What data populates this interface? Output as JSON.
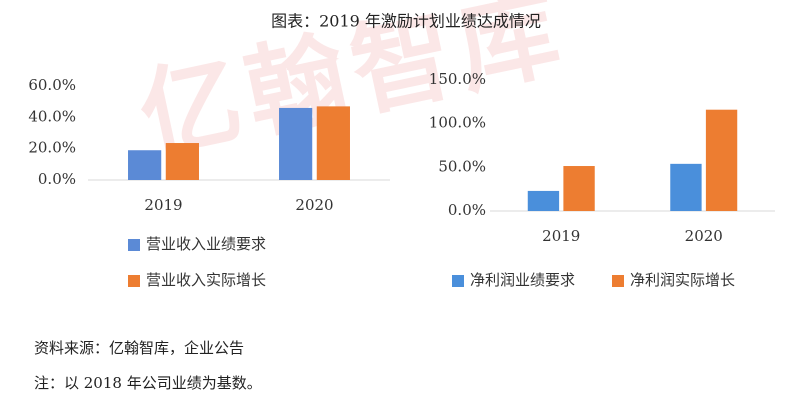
{
  "title": "图表：2019 年激励计划业绩达成情况",
  "watermark": "亿翰智库",
  "chart_data": [
    {
      "type": "bar",
      "categories": [
        "2019",
        "2020"
      ],
      "series": [
        {
          "name": "营业收入业绩要求",
          "color": "#5b8ad6",
          "values": [
            19,
            46
          ]
        },
        {
          "name": "营业收入实际增长",
          "color": "#ed7d31",
          "values": [
            23.6,
            47
          ]
        }
      ],
      "ylim": [
        0,
        60
      ],
      "yticks": [
        {
          "value": 0,
          "label": "0.0%"
        },
        {
          "value": 20,
          "label": "20.0%"
        },
        {
          "value": 40,
          "label": "40.0%"
        },
        {
          "value": 60,
          "label": "60.0%"
        }
      ],
      "legend": "bottom-vertical"
    },
    {
      "type": "bar",
      "categories": [
        "2019",
        "2020"
      ],
      "series": [
        {
          "name": "净利润业绩要求",
          "color": "#4a8fdb",
          "values": [
            23,
            54
          ]
        },
        {
          "name": "净利润实际增长",
          "color": "#ed7d31",
          "values": [
            51.5,
            116
          ]
        }
      ],
      "ylim": [
        0,
        150
      ],
      "yticks": [
        {
          "value": 0,
          "label": "0.0%"
        },
        {
          "value": 50,
          "label": "50.0%"
        },
        {
          "value": 100,
          "label": "100.0%"
        },
        {
          "value": 150,
          "label": "150.0%"
        }
      ],
      "legend": "bottom-horizontal"
    }
  ],
  "notes": [
    "资料来源：亿翰智库，企业公告",
    "注：以 2018 年公司业绩为基数。"
  ]
}
